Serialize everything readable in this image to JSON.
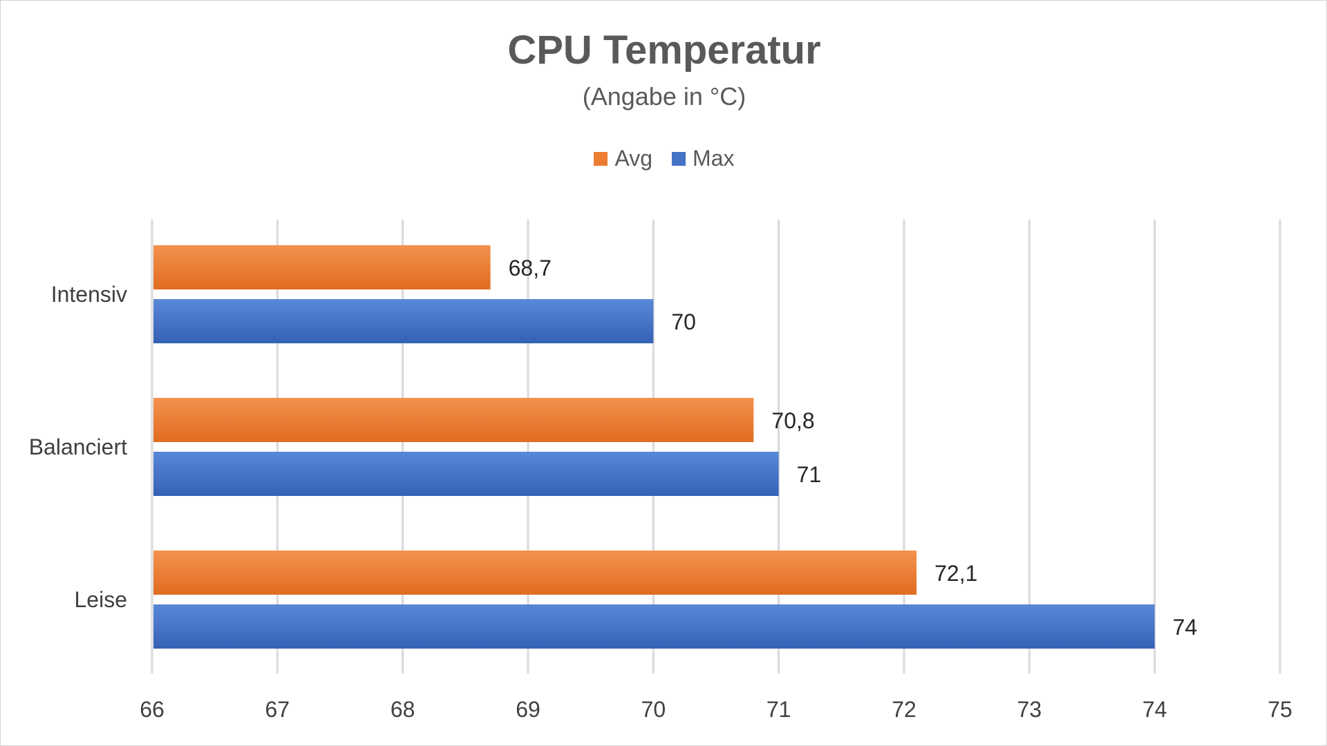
{
  "chart_data": {
    "type": "bar",
    "orientation": "horizontal",
    "title": "CPU Temperatur",
    "subtitle": "(Angabe in °C)",
    "categories": [
      "Intensiv",
      "Balanciert",
      "Leise"
    ],
    "series": [
      {
        "name": "Avg",
        "color": "#ED7D31",
        "values": [
          68.7,
          70.8,
          72.1
        ],
        "labels": [
          "68,7",
          "70,8",
          "72,1"
        ]
      },
      {
        "name": "Max",
        "color": "#4472C4",
        "values": [
          70,
          71,
          74
        ],
        "labels": [
          "70",
          "71",
          "74"
        ]
      }
    ],
    "xlim": [
      66,
      75
    ],
    "xticks": [
      "66",
      "67",
      "68",
      "69",
      "70",
      "71",
      "72",
      "73",
      "74",
      "75"
    ],
    "grid": true,
    "legend_position": "top"
  }
}
